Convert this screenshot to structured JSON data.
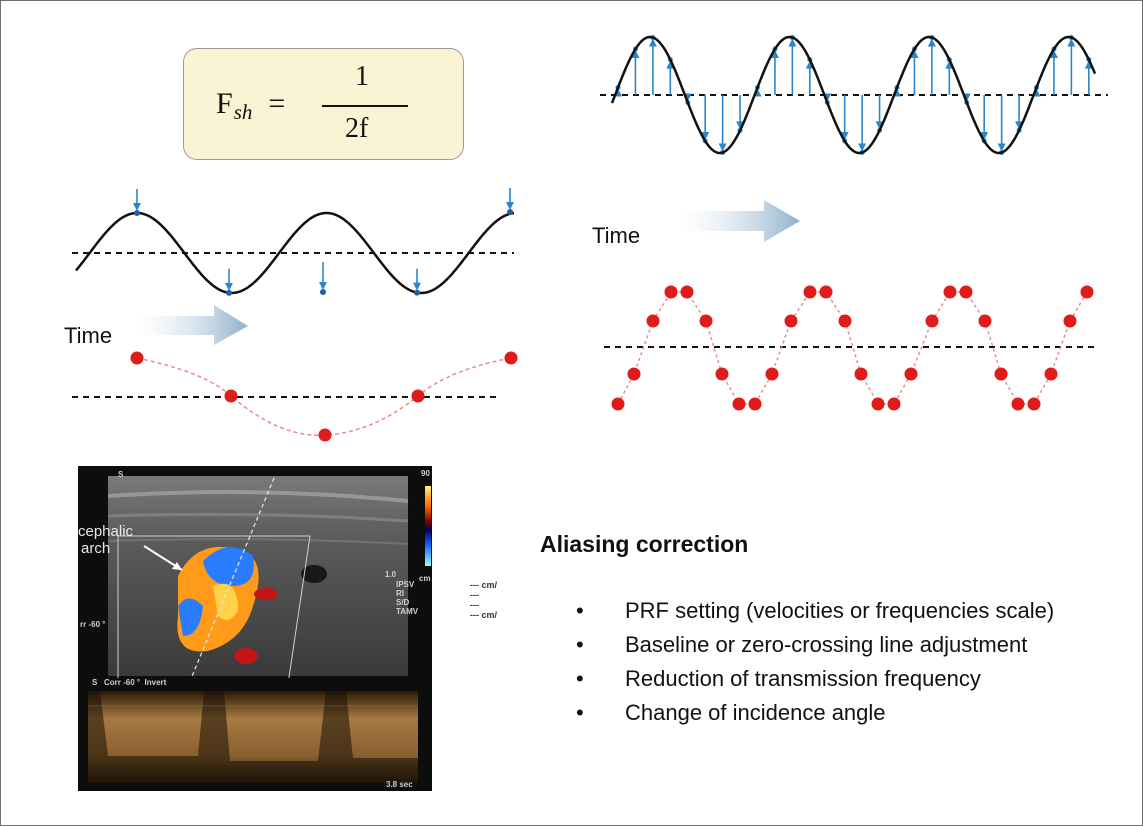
{
  "formula": {
    "lhs_main": "F",
    "lhs_sub": "sh",
    "equals": "=",
    "numerator": "1",
    "denominator": "2f"
  },
  "time_labels": {
    "left": "Time",
    "right": "Time"
  },
  "ultrasound": {
    "annotation_line1": "cephalic",
    "annotation_line2": "arch",
    "corr_label": "Corr -60 °  Invert",
    "angle_label": "rr -60 °",
    "index_labels": "IPSV\nRI\nS/D\nTAMV",
    "unit_labels": "--- cm/\n---\n---\n--- cm/",
    "scale_top": "90",
    "scale_unit": "cm",
    "time_readout": "3.8 sec",
    "depth_marker": "1.0",
    "probe_marker": "S"
  },
  "aliasing": {
    "title": "Aliasing correction",
    "bullet_symbol": "•",
    "items": [
      "PRF setting (velocities  or frequencies scale)",
      "Baseline or zero-crossing  line adjustment",
      "Reduction of transmission frequency",
      "Change of incidence angle"
    ]
  },
  "colors": {
    "wave": "#111111",
    "sample_arrow": "#2a86c8",
    "sample_point": "#1f5fa8",
    "reconstruction_point": "#e01b1b",
    "reconstruction_line": "#f08a8a",
    "time_arrow": "#93b4cf",
    "formula_box": "#fbf4d4"
  }
}
